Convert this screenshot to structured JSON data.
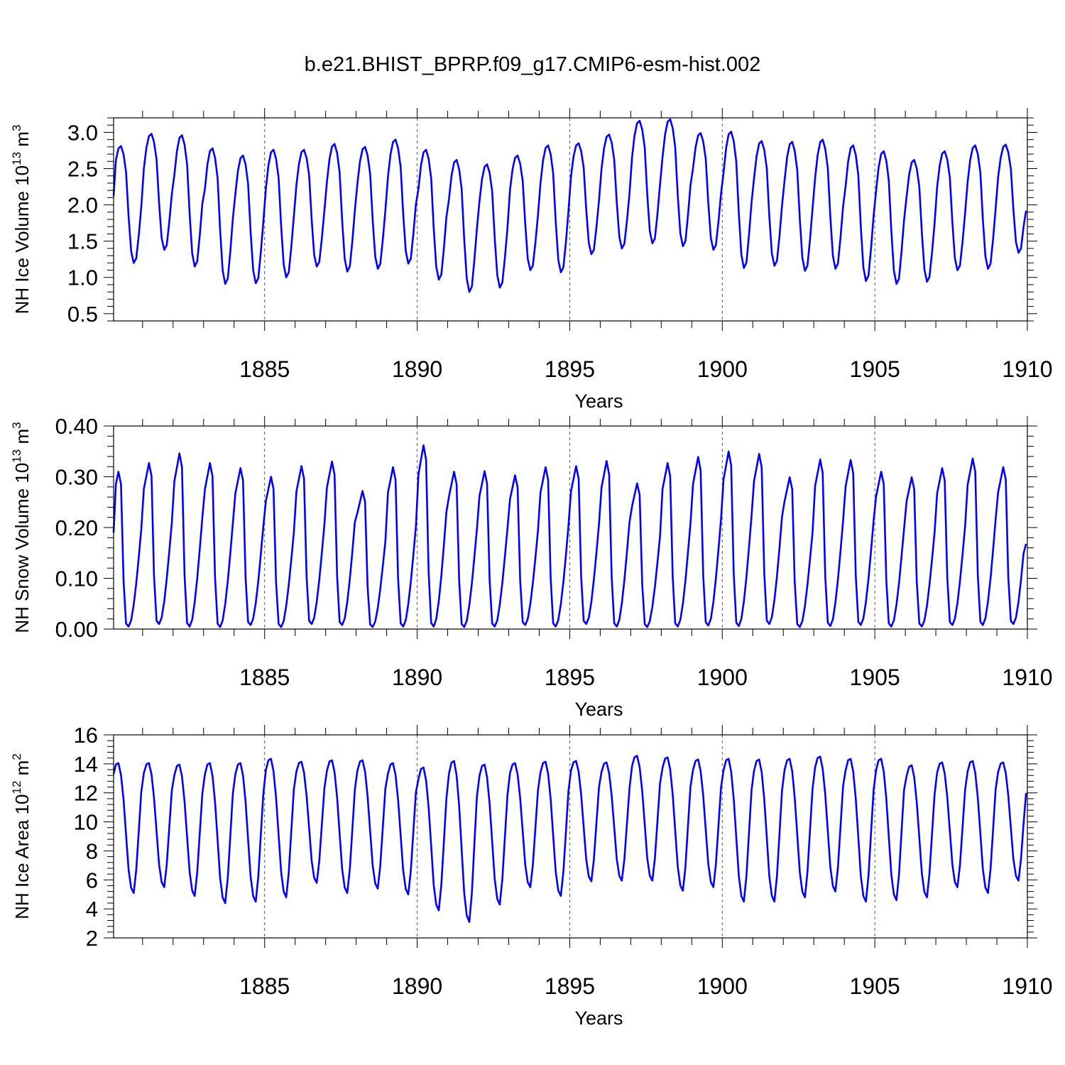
{
  "title": "b.e21.BHIST_BPRP.f09_g17.CMIP6-esm-hist.002",
  "line_color": "#0000ff",
  "chart_data": [
    {
      "type": "line",
      "ylabel_main": "NH Ice Volume 10",
      "ylabel_exp": "13",
      "ylabel_unit": "m",
      "ylabel_unit_exp": "3",
      "xlabel": "Years",
      "xlim": [
        1880.05,
        1910
      ],
      "ylim": [
        0.4,
        3.2
      ],
      "yticks": [
        0.5,
        1.0,
        1.5,
        2.0,
        2.5,
        3.0
      ],
      "ytick_labels": [
        "0.5",
        "1.0",
        "1.5",
        "2.0",
        "2.5",
        "3.0"
      ],
      "xticks": [
        1885,
        1890,
        1895,
        1900,
        1905,
        1910
      ],
      "xtick_labels": [
        "1885",
        "1890",
        "1895",
        "1900",
        "1905",
        "1910"
      ],
      "seasonal": {
        "mean": [
          2.12,
          2.56,
          2.78,
          2.82,
          2.72,
          2.48,
          1.88,
          1.38,
          1.2,
          1.26,
          1.58,
          1.96
        ],
        "pattern": "month-anomaly"
      },
      "yearly_max": [
        2.81,
        2.98,
        2.96,
        2.78,
        2.68,
        2.76,
        2.76,
        2.84,
        2.8,
        2.9,
        2.76,
        2.62,
        2.56,
        2.68,
        2.82,
        2.85,
        2.97,
        3.16,
        3.18,
        2.99,
        3.01,
        2.88,
        2.87,
        2.9,
        2.82,
        2.74,
        2.62,
        2.74,
        2.82,
        2.83
      ],
      "yearly_min": [
        1.2,
        1.38,
        1.15,
        0.91,
        0.92,
        1.0,
        1.15,
        1.08,
        1.12,
        1.19,
        0.97,
        0.8,
        0.86,
        1.1,
        1.07,
        1.32,
        1.4,
        1.47,
        1.43,
        1.38,
        1.13,
        1.16,
        1.09,
        1.12,
        0.95,
        0.91,
        0.94,
        1.1,
        1.12,
        1.34
      ],
      "start_value": 2.12,
      "end_value": 1.92
    },
    {
      "type": "line",
      "ylabel_main": "NH Snow Volume 10",
      "ylabel_exp": "13",
      "ylabel_unit": "m",
      "ylabel_unit_exp": "3",
      "xlabel": "Years",
      "xlim": [
        1880.05,
        1910
      ],
      "ylim": [
        0.0,
        0.4
      ],
      "yticks": [
        0.0,
        0.1,
        0.2,
        0.3,
        0.4
      ],
      "ytick_labels": [
        "0.00",
        "0.10",
        "0.20",
        "0.30",
        "0.40"
      ],
      "xticks": [
        1885,
        1890,
        1895,
        1900,
        1905,
        1910
      ],
      "xtick_labels": [
        "1885",
        "1890",
        "1895",
        "1900",
        "1905",
        "1910"
      ],
      "yearly_max": [
        0.31,
        0.327,
        0.346,
        0.327,
        0.317,
        0.3,
        0.321,
        0.33,
        0.272,
        0.319,
        0.362,
        0.31,
        0.311,
        0.303,
        0.319,
        0.321,
        0.331,
        0.287,
        0.327,
        0.339,
        0.35,
        0.345,
        0.299,
        0.334,
        0.333,
        0.31,
        0.299,
        0.317,
        0.336,
        0.319
      ],
      "yearly_min": [
        0.005,
        0.01,
        0.005,
        0.004,
        0.008,
        0.004,
        0.01,
        0.008,
        0.004,
        0.005,
        0.005,
        0.004,
        0.005,
        0.008,
        0.005,
        0.01,
        0.005,
        0.004,
        0.005,
        0.007,
        0.006,
        0.01,
        0.004,
        0.006,
        0.008,
        0.005,
        0.005,
        0.008,
        0.008,
        0.01
      ],
      "start_value": 0.19,
      "end_value": 0.168
    },
    {
      "type": "line",
      "ylabel_main": "NH Ice Area 10",
      "ylabel_exp": "12",
      "ylabel_unit": "m",
      "ylabel_unit_exp": "2",
      "xlabel": "Years",
      "xlim": [
        1880.05,
        1910
      ],
      "ylim": [
        2,
        16
      ],
      "yticks": [
        2,
        4,
        6,
        8,
        10,
        12,
        14,
        16
      ],
      "ytick_labels": [
        "2",
        "4",
        "6",
        "8",
        "10",
        "12",
        "14",
        "16"
      ],
      "xticks": [
        1885,
        1890,
        1895,
        1900,
        1905,
        1910
      ],
      "xtick_labels": [
        "1885",
        "1890",
        "1895",
        "1900",
        "1905",
        "1910"
      ],
      "yearly_max": [
        14.05,
        14.05,
        13.95,
        14.05,
        14.05,
        14.35,
        14.15,
        14.25,
        14.25,
        14.05,
        13.75,
        14.2,
        13.95,
        14.05,
        14.15,
        14.2,
        14.1,
        14.55,
        14.45,
        14.3,
        14.35,
        14.3,
        14.35,
        14.5,
        14.35,
        14.35,
        13.9,
        14.1,
        14.2,
        14.1
      ],
      "yearly_min": [
        5.1,
        5.5,
        4.9,
        4.4,
        4.5,
        4.8,
        5.8,
        5.1,
        5.4,
        5.0,
        3.9,
        3.1,
        4.3,
        5.5,
        4.9,
        5.9,
        5.95,
        5.95,
        5.25,
        5.5,
        4.5,
        4.5,
        4.8,
        5.2,
        4.5,
        4.6,
        4.8,
        5.5,
        5.1,
        5.95
      ],
      "start_value": 13.3,
      "end_value": 12.0
    }
  ]
}
